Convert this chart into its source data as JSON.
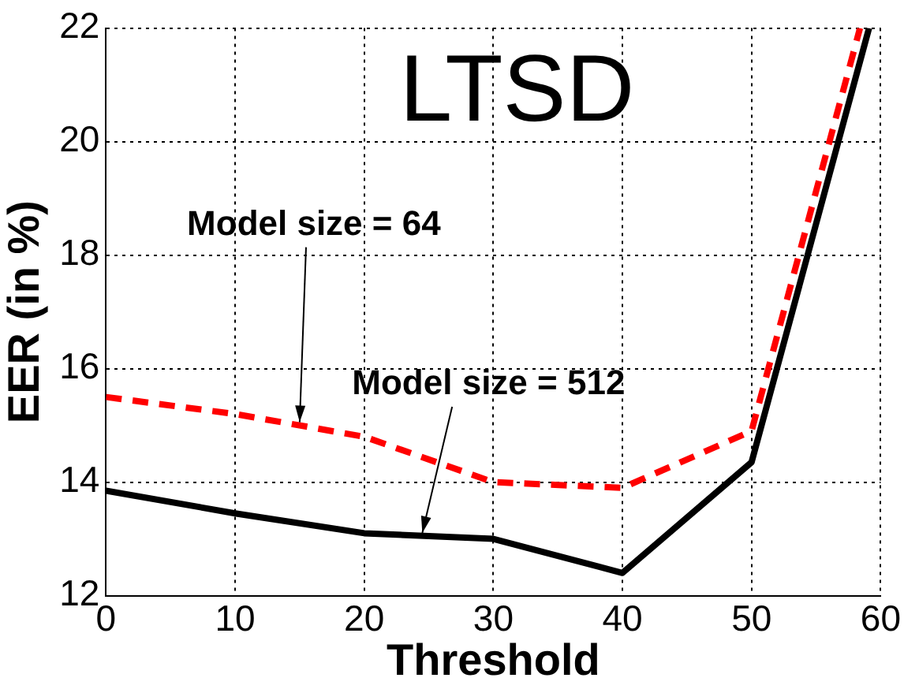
{
  "chart_data": {
    "type": "line",
    "title": "LTSD",
    "xlabel": "Threshold",
    "ylabel": "EER (in %)",
    "series": [
      {
        "color": "#ff0000",
        "line_style": "dashed",
        "x": [
          0,
          10,
          20,
          30,
          40,
          50,
          58.4
        ],
        "values": [
          15.5,
          15.2,
          14.8,
          14.0,
          13.9,
          14.9,
          22
        ]
      },
      {
        "color": "#000000",
        "line_style": "solid",
        "x": [
          0,
          10,
          20,
          30,
          40,
          50,
          59.1
        ],
        "values": [
          13.85,
          13.45,
          13.1,
          13.0,
          12.4,
          14.35,
          22
        ]
      }
    ],
    "annotations": [
      {
        "text": "Model size = 64",
        "x": 15,
        "y": 15.0
      },
      {
        "text": "Model size = 512",
        "x": 24.5,
        "y": 13.05
      }
    ],
    "xlim": [
      0,
      60
    ],
    "xticks": [
      0,
      10,
      20,
      30,
      40,
      50,
      60
    ],
    "ylim": [
      12,
      22
    ],
    "yticks": [
      12,
      14,
      16,
      18,
      20,
      22
    ],
    "grid": true,
    "legend": false,
    "marker": "none"
  }
}
